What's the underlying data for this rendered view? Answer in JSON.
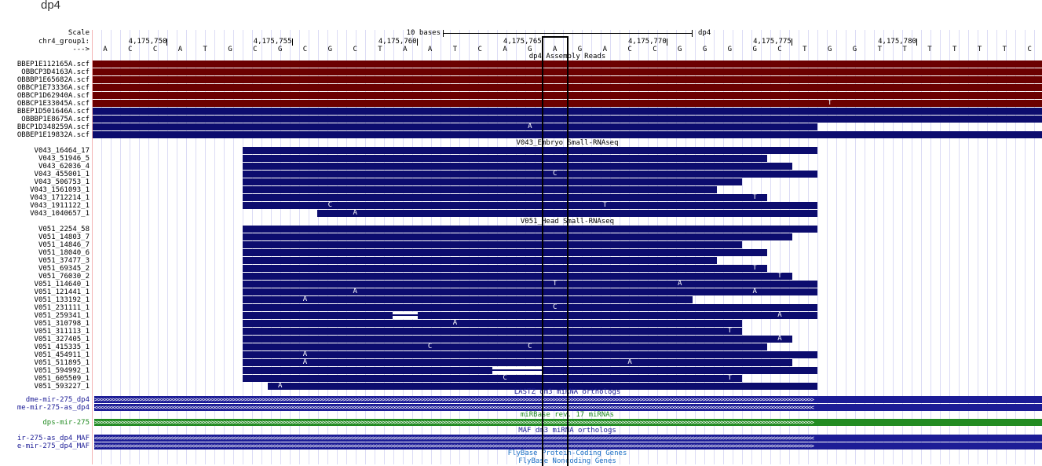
{
  "title": "dp4",
  "ruler": {
    "scale_label": "Scale",
    "scale_bar_label": "10 bases",
    "scale_assembly": "dp4",
    "chrom_label": "chr4_group1:",
    "strand_label": "--->",
    "positions": [
      "4,175,750",
      "4,175,755",
      "4,175,760",
      "4,175,765",
      "4,175,770",
      "4,175,775",
      "4,175,780"
    ],
    "bases": [
      "A",
      "C",
      "C",
      "A",
      "T",
      "G",
      "C",
      "G",
      "C",
      "G",
      "C",
      "T",
      "A",
      "A",
      "T",
      "C",
      "A",
      "G",
      "A",
      "G",
      "A",
      "C",
      "C",
      "G",
      "G",
      "G",
      "G",
      "C",
      "T",
      "G",
      "G",
      "T",
      "T",
      "T",
      "T",
      "T",
      "T",
      "C"
    ],
    "highlight_base_index": 18
  },
  "colors": {
    "assembly_red": "#6b0000",
    "assembly_blue": "#0c0c6e",
    "smallrna": "#0c0c6e",
    "lastz": "#1c1c96",
    "mirbase": "#228b22",
    "flybase": "#1a6fc4"
  },
  "tracks": {
    "assembly": {
      "title": "dp4 Assembly Reads",
      "rows": [
        {
          "name": "BBEP1E112165A.scf",
          "color": "red",
          "start": 0,
          "end": 38,
          "mism": []
        },
        {
          "name": "OBBCP3D4163A.scf",
          "color": "red",
          "start": 0,
          "end": 38,
          "mism": []
        },
        {
          "name": "OBBBP1E65682A.scf",
          "color": "red",
          "start": 0,
          "end": 38,
          "mism": []
        },
        {
          "name": "OBBCP1E73336A.scf",
          "color": "red",
          "start": 0,
          "end": 38,
          "mism": []
        },
        {
          "name": "OBBCP1D62940A.scf",
          "color": "red",
          "start": 0,
          "end": 38,
          "mism": []
        },
        {
          "name": "OBBCP1E33045A.scf",
          "color": "red",
          "start": 0,
          "end": 38,
          "mism": [
            {
              "i": 29,
              "b": "T"
            }
          ]
        },
        {
          "name": "BBEP1D501646A.scf",
          "color": "blue",
          "start": 0,
          "end": 38,
          "mism": []
        },
        {
          "name": "OBBBP1E8675A.scf",
          "color": "blue",
          "start": 0,
          "end": 38,
          "mism": []
        },
        {
          "name": "BBCP1D348259A.scf",
          "color": "blue",
          "start": 0,
          "end": 29,
          "mism": [
            {
              "i": 17,
              "b": "A"
            }
          ]
        },
        {
          "name": "OBBEP1E19832A.scf",
          "color": "blue",
          "start": 0,
          "end": 38,
          "mism": []
        }
      ]
    },
    "v043": {
      "title": "V043_Embryo Small-RNAseq",
      "rows": [
        {
          "name": "V043_16464_17",
          "start": 6,
          "end": 29,
          "mism": []
        },
        {
          "name": "V043_51946_5",
          "start": 6,
          "end": 27,
          "mism": []
        },
        {
          "name": "V043_62036_4",
          "start": 6,
          "end": 28,
          "mism": []
        },
        {
          "name": "V043_455001_1",
          "start": 6,
          "end": 29,
          "mism": [
            {
              "i": 18,
              "b": "C"
            }
          ]
        },
        {
          "name": "V043_506753_1",
          "start": 6,
          "end": 26,
          "mism": []
        },
        {
          "name": "V043_1561093_1",
          "start": 6,
          "end": 25,
          "mism": []
        },
        {
          "name": "V043_1712214_1",
          "start": 6,
          "end": 27,
          "mism": [
            {
              "i": 26,
              "b": "T"
            }
          ]
        },
        {
          "name": "V043_1911122_1",
          "start": 6,
          "end": 29,
          "mism": [
            {
              "i": 9,
              "b": "C"
            },
            {
              "i": 20,
              "b": "T"
            }
          ]
        },
        {
          "name": "V043_1040657_1",
          "start": 9,
          "end": 29,
          "mism": [
            {
              "i": 10,
              "b": "A"
            }
          ]
        }
      ]
    },
    "v051": {
      "title": "V051_Head Small-RNAseq",
      "rows": [
        {
          "name": "V051_2254_58",
          "start": 6,
          "end": 29,
          "mism": []
        },
        {
          "name": "V051_14803_7",
          "start": 6,
          "end": 28,
          "mism": []
        },
        {
          "name": "V051_14846_7",
          "start": 6,
          "end": 26,
          "mism": []
        },
        {
          "name": "V051_18040_6",
          "start": 6,
          "end": 27,
          "mism": []
        },
        {
          "name": "V051_37477_3",
          "start": 6,
          "end": 25,
          "mism": []
        },
        {
          "name": "V051_69345_2",
          "start": 6,
          "end": 27,
          "mism": [
            {
              "i": 26,
              "b": "T"
            }
          ]
        },
        {
          "name": "V051_76030_2",
          "start": 6,
          "end": 28,
          "mism": [
            {
              "i": 27,
              "b": "T"
            }
          ]
        },
        {
          "name": "V051_114640_1",
          "start": 6,
          "end": 29,
          "mism": [
            {
              "i": 18,
              "b": "T"
            },
            {
              "i": 23,
              "b": "A"
            }
          ]
        },
        {
          "name": "V051_121441_1",
          "start": 6,
          "end": 29,
          "mism": [
            {
              "i": 10,
              "b": "A"
            },
            {
              "i": 26,
              "b": "A"
            }
          ]
        },
        {
          "name": "V051_133192_1",
          "start": 6,
          "end": 24,
          "mism": [
            {
              "i": 8,
              "b": "A"
            }
          ]
        },
        {
          "name": "V051_231111_1",
          "start": 6,
          "end": 29,
          "mism": [
            {
              "i": 18,
              "b": "C"
            }
          ]
        },
        {
          "name": "V051_259341_1",
          "start": 6,
          "end": 29,
          "mism": [
            {
              "i": 27,
              "b": "A"
            }
          ],
          "gap": [
            12,
            13
          ]
        },
        {
          "name": "V051_310798_1",
          "start": 6,
          "end": 26,
          "mism": [
            {
              "i": 14,
              "b": "A"
            }
          ]
        },
        {
          "name": "V051_311113_1",
          "start": 6,
          "end": 26,
          "mism": [
            {
              "i": 25,
              "b": "T"
            }
          ]
        },
        {
          "name": "V051_327405_1",
          "start": 6,
          "end": 28,
          "mism": [
            {
              "i": 27,
              "b": "A"
            }
          ]
        },
        {
          "name": "V051_415335_1",
          "start": 6,
          "end": 27,
          "mism": [
            {
              "i": 13,
              "b": "C"
            },
            {
              "i": 17,
              "b": "C"
            }
          ]
        },
        {
          "name": "V051_454911_1",
          "start": 6,
          "end": 29,
          "mism": [
            {
              "i": 8,
              "b": "A"
            }
          ]
        },
        {
          "name": "V051_511895_1",
          "start": 6,
          "end": 28,
          "mism": [
            {
              "i": 8,
              "b": "A"
            },
            {
              "i": 21,
              "b": "A"
            }
          ]
        },
        {
          "name": "V051_594992_1",
          "start": 6,
          "end": 29,
          "mism": [],
          "gap": [
            16,
            18
          ]
        },
        {
          "name": "V051_605509_1",
          "start": 6,
          "end": 26,
          "mism": [
            {
              "i": 16,
              "b": "C"
            },
            {
              "i": 25,
              "b": "T"
            }
          ]
        },
        {
          "name": "V051_593227_1",
          "start": 7,
          "end": 29,
          "mism": [
            {
              "i": 7,
              "b": "A"
            }
          ]
        }
      ]
    },
    "lastz": {
      "title": "LASTZ dm3 miRNA orthologs",
      "rows": [
        {
          "name": "dme-mir-275_dp4",
          "dir": ">"
        },
        {
          "name": "me-mir-275-as_dp4",
          "dir": "<"
        }
      ]
    },
    "mirbase": {
      "title": "miRBase rev. 17 miRNAs",
      "rows": [
        {
          "name": "dps-mir-275",
          "dir": ">"
        }
      ]
    },
    "maf": {
      "title": "MAF dm3 miRNA orthologs",
      "rows": [
        {
          "name": "ir-275-as_dp4_MAF",
          "dir": "<"
        },
        {
          "name": "e-mir-275_dp4_MAF",
          "dir": ">"
        }
      ]
    },
    "flybase_protein": {
      "title": "FlyBase Protein-Coding Genes"
    },
    "flybase_noncoding": {
      "title": "FlyBase Noncoding Genes"
    }
  }
}
